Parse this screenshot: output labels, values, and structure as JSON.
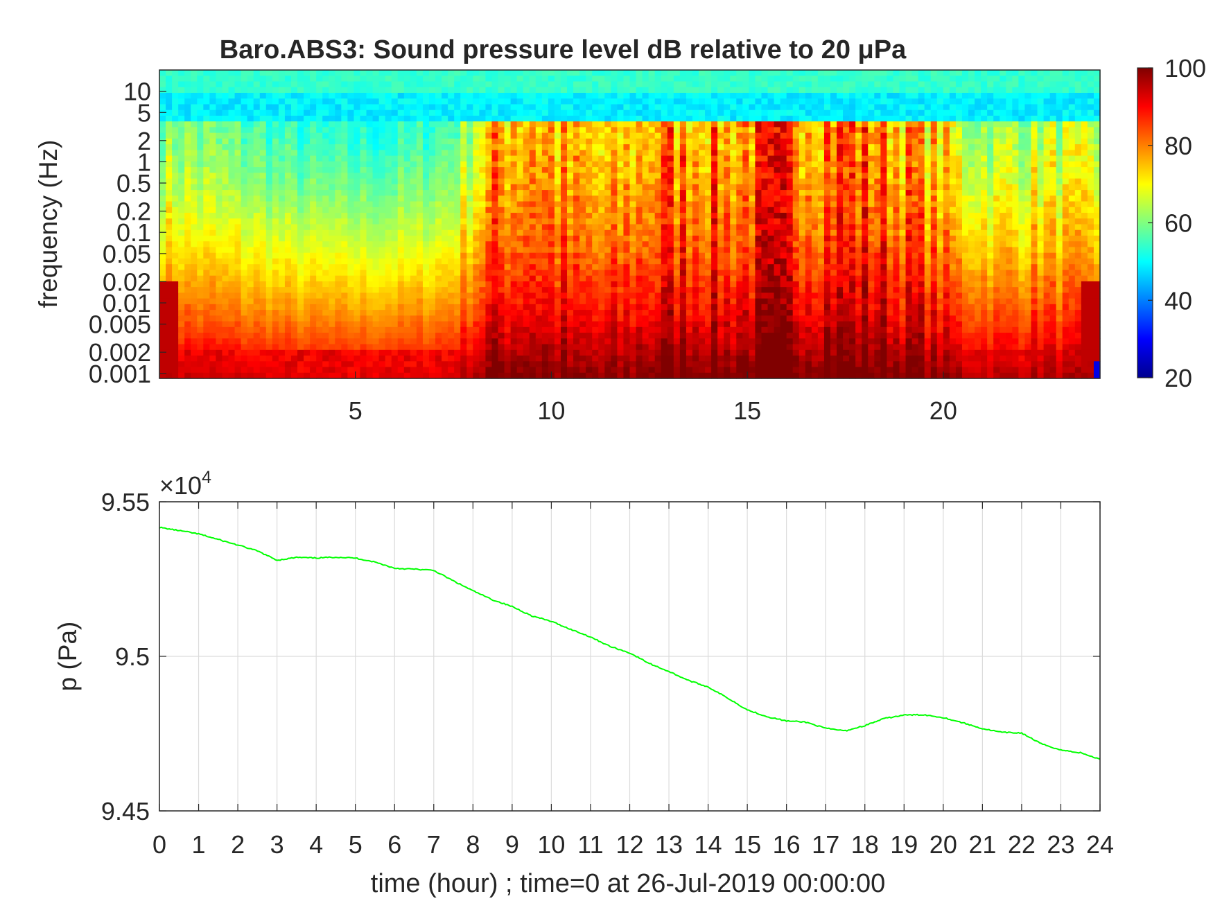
{
  "chart_data": [
    {
      "type": "heatmap",
      "title": "Baro.ABS3: Sound pressure level dB relative to 20 μPa",
      "xlabel": "",
      "ylabel": "frequency (Hz)",
      "xlim": [
        0,
        24
      ],
      "x_ticks": [
        5,
        10,
        15,
        20
      ],
      "y_scale": "log",
      "ylim": [
        0.00085,
        20
      ],
      "y_ticks": [
        0.001,
        0.002,
        0.005,
        0.01,
        0.02,
        0.05,
        0.1,
        0.2,
        0.5,
        1,
        2,
        5,
        10
      ],
      "y_tick_labels": [
        "0.001",
        "0.002",
        "0.005",
        "0.01",
        "0.02",
        "0.05",
        "0.1",
        "0.2",
        "0.5",
        "1",
        "2",
        "5",
        "10"
      ],
      "colorbar": {
        "min": 20,
        "max": 100,
        "ticks": [
          20,
          40,
          60,
          80,
          100
        ],
        "colormap": "jet"
      },
      "z_approx_by_hour": {
        "hours": [
          0.5,
          1.5,
          2.5,
          3.5,
          4.5,
          5.5,
          6.5,
          7.5,
          8.5,
          9.5,
          10.5,
          11.5,
          12.5,
          13.5,
          14.5,
          15.5,
          16.5,
          17.5,
          18.5,
          19.5,
          20.5,
          21.5,
          22.5,
          23.5
        ],
        "activity_level": [
          0.45,
          0.4,
          0.35,
          0.3,
          0.28,
          0.28,
          0.3,
          0.38,
          0.75,
          0.85,
          0.7,
          0.65,
          0.8,
          0.85,
          0.8,
          0.9,
          0.92,
          0.9,
          0.85,
          0.75,
          0.55,
          0.5,
          0.55,
          0.5
        ]
      }
    },
    {
      "type": "line",
      "title": "",
      "xlabel": "time (hour) ; time=0 at 26-Jul-2019 00:00:00",
      "ylabel": "p (Pa)",
      "exponent_label": "×10",
      "exponent_power": "4",
      "xlim": [
        0,
        24
      ],
      "x_ticks": [
        0,
        1,
        2,
        3,
        4,
        5,
        6,
        7,
        8,
        9,
        10,
        11,
        12,
        13,
        14,
        15,
        16,
        17,
        18,
        19,
        20,
        21,
        22,
        23,
        24
      ],
      "ylim": [
        9.45,
        9.55
      ],
      "y_ticks": [
        9.45,
        9.5,
        9.55
      ],
      "y_tick_labels": [
        "9.45",
        "9.5",
        "9.55"
      ],
      "grid": true,
      "series": [
        {
          "color": "#00ff00",
          "x": [
            0,
            0.5,
            1,
            1.5,
            2,
            2.5,
            3,
            3.5,
            4,
            4.5,
            5,
            5.5,
            6,
            6.5,
            7,
            7.5,
            8,
            8.5,
            9,
            9.5,
            10,
            10.5,
            11,
            11.5,
            12,
            12.5,
            13,
            13.5,
            14,
            14.5,
            15,
            15.5,
            16,
            16.5,
            17,
            17.5,
            18,
            18.5,
            19,
            19.5,
            20,
            20.5,
            21,
            21.5,
            22,
            22.5,
            23,
            23.5,
            24
          ],
          "y": [
            9.5417,
            9.5407,
            9.5396,
            9.5378,
            9.536,
            9.5341,
            9.5311,
            9.532,
            9.5318,
            9.5321,
            9.5318,
            9.5305,
            9.5285,
            9.5282,
            9.5278,
            9.5244,
            9.5212,
            9.5183,
            9.5161,
            9.5131,
            9.5113,
            9.5087,
            9.5063,
            9.5032,
            9.5011,
            9.4977,
            9.4951,
            9.4922,
            9.4901,
            9.4865,
            9.4827,
            9.4805,
            9.4791,
            9.4787,
            9.4767,
            9.4759,
            9.4776,
            9.4799,
            9.481,
            9.4811,
            9.4802,
            9.4785,
            9.4766,
            9.4754,
            9.4752,
            9.4717,
            9.4697,
            9.4688,
            9.4667
          ]
        }
      ]
    }
  ]
}
